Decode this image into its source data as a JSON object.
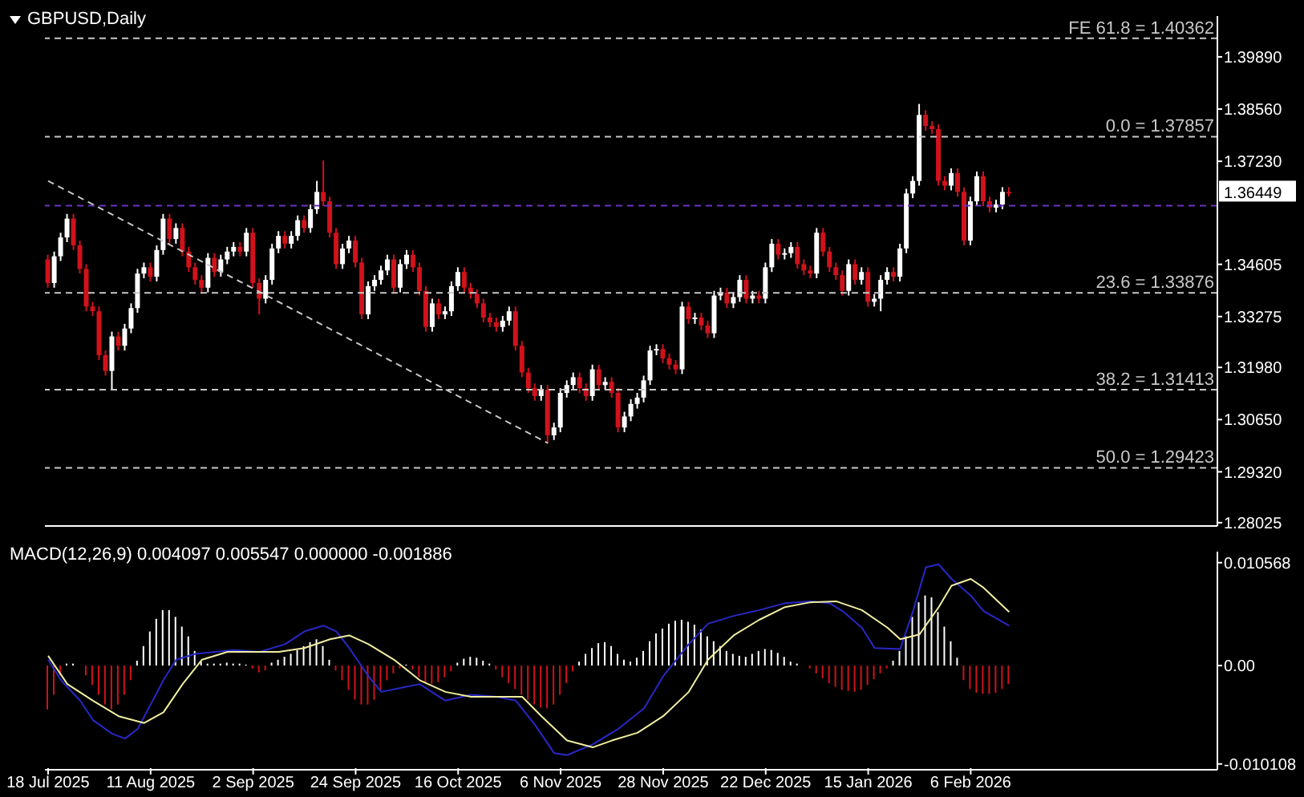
{
  "chart_data": [
    {
      "type": "candlestick",
      "title": "GBPUSD,Daily",
      "tick_labels": "y",
      "categories": [
        null,
        null,
        null,
        null,
        null,
        null,
        null,
        null,
        null,
        null,
        null,
        null,
        null,
        null,
        null,
        null,
        null,
        null,
        null,
        null,
        null,
        null,
        null,
        null,
        null,
        null,
        null,
        null,
        null,
        null,
        null,
        null,
        null,
        null,
        null,
        null,
        null,
        null,
        null,
        null,
        null,
        null,
        null,
        null,
        null,
        null,
        null,
        null,
        null,
        null,
        null,
        null,
        null,
        null,
        null,
        null,
        null,
        null,
        null,
        null,
        null,
        null,
        null,
        null,
        null,
        null,
        null,
        null,
        null,
        null,
        null,
        null,
        null,
        null,
        null,
        null,
        null,
        null,
        null,
        null,
        null,
        null,
        null,
        null,
        null,
        null,
        null,
        null,
        null,
        null,
        null,
        null,
        null,
        null,
        null,
        null,
        null,
        null,
        null,
        null,
        null,
        null,
        null,
        null,
        null,
        null,
        null,
        null,
        null,
        null,
        null,
        null,
        null,
        null,
        null,
        null,
        null,
        null,
        null,
        null,
        null,
        null,
        null,
        null,
        null,
        null,
        null,
        null,
        null,
        null,
        null,
        null,
        null,
        null,
        null,
        null,
        null,
        null,
        null,
        null,
        null,
        null,
        null,
        null,
        null,
        null,
        null,
        null,
        null,
        null,
        null,
        null,
        null,
        null,
        null,
        null,
        null,
        null,
        null,
        null,
        null,
        null,
        null,
        null,
        null,
        null,
        null,
        null,
        null,
        null,
        null,
        null,
        null,
        null,
        null,
        null,
        null,
        null,
        null,
        null,
        null,
        null,
        null
      ],
      "ohlc": [
        [
          1.3473,
          1.3485,
          1.3401,
          1.3413
        ],
        [
          1.3413,
          1.3493,
          1.3401,
          1.3481
        ],
        [
          1.3481,
          1.3541,
          1.3469,
          1.3529
        ],
        [
          1.3529,
          1.3589,
          1.3517,
          1.3577
        ],
        [
          1.3577,
          1.3589,
          1.3497,
          1.3509
        ],
        [
          1.3509,
          1.3521,
          1.3437,
          1.3449
        ],
        [
          1.3449,
          1.3461,
          1.3341,
          1.3353
        ],
        [
          1.3353,
          1.3365,
          1.3329,
          1.3341
        ],
        [
          1.3341,
          1.3353,
          1.3217,
          1.3229
        ],
        [
          1.3229,
          1.3241,
          1.3177,
          1.3189
        ],
        [
          1.3189,
          1.3289,
          1.3141,
          1.3277
        ],
        [
          1.3277,
          1.3289,
          1.3241,
          1.3253
        ],
        [
          1.3253,
          1.3309,
          1.3241,
          1.3297
        ],
        [
          1.3297,
          1.3361,
          1.3285,
          1.3349
        ],
        [
          1.3349,
          1.3449,
          1.3337,
          1.3437
        ],
        [
          1.3437,
          1.3465,
          1.3425,
          1.3453
        ],
        [
          1.3453,
          1.3465,
          1.3417,
          1.3429
        ],
        [
          1.3429,
          1.3509,
          1.3417,
          1.3497
        ],
        [
          1.3497,
          1.3589,
          1.3485,
          1.3577
        ],
        [
          1.3577,
          1.3589,
          1.3513,
          1.3525
        ],
        [
          1.3525,
          1.3565,
          1.3513,
          1.3553
        ],
        [
          1.3553,
          1.3565,
          1.3481,
          1.3493
        ],
        [
          1.3493,
          1.3505,
          1.3441,
          1.3453
        ],
        [
          1.3453,
          1.3465,
          1.3409,
          1.3421
        ],
        [
          1.3421,
          1.3433,
          1.3389,
          1.3401
        ],
        [
          1.3401,
          1.3489,
          1.3389,
          1.3477
        ],
        [
          1.3477,
          1.3489,
          1.3429,
          1.3441
        ],
        [
          1.3441,
          1.3485,
          1.3429,
          1.3473
        ],
        [
          1.3473,
          1.3505,
          1.3461,
          1.3493
        ],
        [
          1.3493,
          1.3517,
          1.3481,
          1.3505
        ],
        [
          1.3505,
          1.3517,
          1.3481,
          1.3493
        ],
        [
          1.3493,
          1.3553,
          1.3481,
          1.3541
        ],
        [
          1.3541,
          1.3553,
          1.3401,
          1.3413
        ],
        [
          1.3413,
          1.3425,
          1.3333,
          1.3373
        ],
        [
          1.3373,
          1.3433,
          1.3361,
          1.3421
        ],
        [
          1.3421,
          1.3513,
          1.3409,
          1.3501
        ],
        [
          1.3501,
          1.3545,
          1.3489,
          1.3533
        ],
        [
          1.3533,
          1.3545,
          1.3501,
          1.3513
        ],
        [
          1.3513,
          1.3545,
          1.3501,
          1.3533
        ],
        [
          1.3533,
          1.3585,
          1.3521,
          1.3573
        ],
        [
          1.3573,
          1.3585,
          1.3541,
          1.3553
        ],
        [
          1.3553,
          1.3613,
          1.3541,
          1.3601
        ],
        [
          1.3601,
          1.3673,
          1.3589,
          1.3645
        ],
        [
          1.3645,
          1.3725,
          1.3609,
          1.3621
        ],
        [
          1.3621,
          1.3633,
          1.3529,
          1.3541
        ],
        [
          1.3541,
          1.3553,
          1.3449,
          1.3461
        ],
        [
          1.3461,
          1.3513,
          1.3449,
          1.3501
        ],
        [
          1.3501,
          1.3533,
          1.3489,
          1.3521
        ],
        [
          1.3521,
          1.3533,
          1.3453,
          1.3465
        ],
        [
          1.3465,
          1.3477,
          1.3321,
          1.3333
        ],
        [
          1.3333,
          1.3417,
          1.3321,
          1.3405
        ],
        [
          1.3405,
          1.3433,
          1.3393,
          1.3421
        ],
        [
          1.3421,
          1.3457,
          1.3409,
          1.3445
        ],
        [
          1.3445,
          1.3485,
          1.3433,
          1.3473
        ],
        [
          1.3473,
          1.3485,
          1.3389,
          1.3401
        ],
        [
          1.3401,
          1.3473,
          1.3389,
          1.3461
        ],
        [
          1.3461,
          1.3497,
          1.3449,
          1.3485
        ],
        [
          1.3485,
          1.3497,
          1.3441,
          1.3453
        ],
        [
          1.3453,
          1.3465,
          1.3381,
          1.3393
        ],
        [
          1.3393,
          1.3405,
          1.3289,
          1.3301
        ],
        [
          1.3301,
          1.3373,
          1.3289,
          1.3361
        ],
        [
          1.3361,
          1.3373,
          1.3321,
          1.3333
        ],
        [
          1.3333,
          1.3353,
          1.3321,
          1.3341
        ],
        [
          1.3341,
          1.3417,
          1.3329,
          1.3405
        ],
        [
          1.3405,
          1.3453,
          1.3393,
          1.3441
        ],
        [
          1.3441,
          1.3453,
          1.3389,
          1.3401
        ],
        [
          1.3401,
          1.3413,
          1.3373,
          1.3385
        ],
        [
          1.3385,
          1.3397,
          1.3349,
          1.3361
        ],
        [
          1.3361,
          1.3373,
          1.3313,
          1.3325
        ],
        [
          1.3325,
          1.3337,
          1.3301,
          1.3313
        ],
        [
          1.3313,
          1.3325,
          1.3289,
          1.3301
        ],
        [
          1.3301,
          1.3329,
          1.3289,
          1.3317
        ],
        [
          1.3317,
          1.3353,
          1.3305,
          1.3341
        ],
        [
          1.3341,
          1.3353,
          1.3241,
          1.3253
        ],
        [
          1.3253,
          1.3265,
          1.3173,
          1.3185
        ],
        [
          1.3185,
          1.3197,
          1.3133,
          1.3145
        ],
        [
          1.3145,
          1.3157,
          1.3113,
          1.3125
        ],
        [
          1.3125,
          1.3153,
          1.3113,
          1.3141
        ],
        [
          1.3141,
          1.3153,
          1.3005,
          1.3025
        ],
        [
          1.3025,
          1.3057,
          1.3013,
          1.3045
        ],
        [
          1.3045,
          1.3145,
          1.3033,
          1.3133
        ],
        [
          1.3133,
          1.3165,
          1.3121,
          1.3153
        ],
        [
          1.3153,
          1.3185,
          1.3141,
          1.3173
        ],
        [
          1.3173,
          1.3185,
          1.3133,
          1.3145
        ],
        [
          1.3145,
          1.3157,
          1.3113,
          1.3125
        ],
        [
          1.3125,
          1.3205,
          1.3113,
          1.3193
        ],
        [
          1.3193,
          1.3205,
          1.3141,
          1.3153
        ],
        [
          1.3153,
          1.3173,
          1.3141,
          1.3161
        ],
        [
          1.3161,
          1.3173,
          1.3121,
          1.3133
        ],
        [
          1.3133,
          1.3145,
          1.3033,
          1.3045
        ],
        [
          1.3045,
          1.3085,
          1.3033,
          1.3073
        ],
        [
          1.3073,
          1.3117,
          1.3061,
          1.3105
        ],
        [
          1.3105,
          1.3133,
          1.3093,
          1.3121
        ],
        [
          1.3121,
          1.3177,
          1.3109,
          1.3165
        ],
        [
          1.3165,
          1.3253,
          1.3153,
          1.3241
        ],
        [
          1.3241,
          1.3257,
          1.3229,
          1.3245
        ],
        [
          1.3245,
          1.3257,
          1.3209,
          1.3221
        ],
        [
          1.3221,
          1.3233,
          1.3193,
          1.3205
        ],
        [
          1.3205,
          1.3217,
          1.3181,
          1.3193
        ],
        [
          1.3193,
          1.3365,
          1.3181,
          1.3353
        ],
        [
          1.3353,
          1.3365,
          1.3309,
          1.3321
        ],
        [
          1.3321,
          1.3337,
          1.3309,
          1.3325
        ],
        [
          1.3325,
          1.3337,
          1.3293,
          1.3305
        ],
        [
          1.3305,
          1.3317,
          1.3273,
          1.3285
        ],
        [
          1.3285,
          1.3393,
          1.3273,
          1.3381
        ],
        [
          1.3381,
          1.3401,
          1.3369,
          1.3389
        ],
        [
          1.3389,
          1.3401,
          1.3349,
          1.3361
        ],
        [
          1.3361,
          1.3389,
          1.3349,
          1.3377
        ],
        [
          1.3377,
          1.3433,
          1.3365,
          1.3421
        ],
        [
          1.3421,
          1.3433,
          1.3361,
          1.3373
        ],
        [
          1.3373,
          1.3393,
          1.3361,
          1.3381
        ],
        [
          1.3381,
          1.3393,
          1.3361,
          1.3373
        ],
        [
          1.3373,
          1.3465,
          1.3361,
          1.3453
        ],
        [
          1.3453,
          1.3525,
          1.3441,
          1.3513
        ],
        [
          1.3513,
          1.3525,
          1.3473,
          1.3485
        ],
        [
          1.3485,
          1.3501,
          1.3473,
          1.3489
        ],
        [
          1.3489,
          1.3517,
          1.3477,
          1.3505
        ],
        [
          1.3505,
          1.3517,
          1.3449,
          1.3461
        ],
        [
          1.3461,
          1.3473,
          1.3433,
          1.3445
        ],
        [
          1.3445,
          1.3457,
          1.3425,
          1.3437
        ],
        [
          1.3437,
          1.3553,
          1.3425,
          1.3541
        ],
        [
          1.3541,
          1.3553,
          1.3481,
          1.3493
        ],
        [
          1.3493,
          1.3505,
          1.3441,
          1.3453
        ],
        [
          1.3453,
          1.3465,
          1.3421,
          1.3433
        ],
        [
          1.3433,
          1.3445,
          1.3381,
          1.3393
        ],
        [
          1.3393,
          1.3473,
          1.3381,
          1.3461
        ],
        [
          1.3461,
          1.3473,
          1.3409,
          1.3421
        ],
        [
          1.3421,
          1.3453,
          1.3409,
          1.3441
        ],
        [
          1.3441,
          1.3453,
          1.3353,
          1.3365
        ],
        [
          1.3365,
          1.3385,
          1.3353,
          1.3373
        ],
        [
          1.3373,
          1.3433,
          1.3341,
          1.3421
        ],
        [
          1.3421,
          1.3453,
          1.3409,
          1.3441
        ],
        [
          1.3441,
          1.3453,
          1.3417,
          1.3429
        ],
        [
          1.3429,
          1.3513,
          1.3417,
          1.3501
        ],
        [
          1.3501,
          1.3653,
          1.3489,
          1.3641
        ],
        [
          1.3641,
          1.3685,
          1.3629,
          1.3673
        ],
        [
          1.3673,
          1.3869,
          1.3661,
          1.3841
        ],
        [
          1.3841,
          1.3853,
          1.3801,
          1.3813
        ],
        [
          1.3813,
          1.3825,
          1.3793,
          1.3805
        ],
        [
          1.3805,
          1.3817,
          1.3661,
          1.3673
        ],
        [
          1.3673,
          1.3685,
          1.3649,
          1.3661
        ],
        [
          1.3661,
          1.3705,
          1.3649,
          1.3693
        ],
        [
          1.3693,
          1.3705,
          1.3633,
          1.3645
        ],
        [
          1.3645,
          1.3657,
          1.3509,
          1.3521
        ],
        [
          1.3521,
          1.3633,
          1.3509,
          1.3621
        ],
        [
          1.3621,
          1.3697,
          1.3609,
          1.3685
        ],
        [
          1.3685,
          1.3697,
          1.3609,
          1.3621
        ],
        [
          1.3621,
          1.3633,
          1.3593,
          1.3605
        ],
        [
          1.3605,
          1.3625,
          1.3593,
          1.3613
        ],
        [
          1.3613,
          1.3657,
          1.3601,
          1.3645
        ],
        [
          1.3645,
          1.3657,
          1.3633,
          1.36449
        ],
        null,
        null,
        null,
        null,
        null,
        null,
        null,
        null,
        null,
        null,
        null,
        null,
        null,
        null,
        null,
        null,
        null,
        null,
        null,
        null,
        null,
        null,
        null,
        null,
        null,
        null,
        null,
        null,
        null,
        null,
        null,
        null
      ],
      "series": [
        {
          "type": "line",
          "color": "#c8c8c8",
          "line_style": "dashed",
          "values": [
            1.3673,
            null,
            null,
            null,
            null,
            null,
            null,
            null,
            null,
            null,
            null,
            null,
            null,
            null,
            null,
            null,
            null,
            null,
            null,
            null,
            null,
            null,
            null,
            null,
            null,
            null,
            null,
            null,
            null,
            null,
            null,
            null,
            null,
            null,
            null,
            null,
            null,
            null,
            null,
            null,
            null,
            null,
            null,
            null,
            null,
            null,
            null,
            null,
            null,
            null,
            null,
            null,
            null,
            null,
            null,
            null,
            null,
            null,
            null,
            null,
            null,
            null,
            null,
            null,
            null,
            null,
            null,
            null,
            null,
            null,
            null,
            null,
            null,
            null,
            null,
            null,
            null,
            null,
            1.3005,
            null,
            null,
            null,
            null,
            null,
            null,
            null,
            null,
            null,
            null,
            null,
            null,
            null,
            null,
            null,
            null,
            null,
            null,
            null,
            null,
            null,
            null,
            null,
            null,
            null,
            null,
            null,
            null,
            null,
            null,
            null,
            null,
            null,
            null,
            null,
            null,
            null,
            null,
            null,
            null,
            null,
            null,
            null,
            null,
            null,
            null,
            null,
            null,
            null,
            null,
            null,
            null,
            null,
            null,
            null,
            null,
            null,
            null,
            null,
            null,
            null,
            null,
            null,
            null,
            null,
            null,
            null,
            null,
            null,
            null,
            null,
            null,
            null,
            null,
            null,
            null,
            null,
            null,
            null,
            null,
            null,
            null,
            null,
            null,
            null,
            null,
            null,
            null,
            null,
            null,
            null,
            null,
            null,
            null,
            null,
            null,
            null,
            null,
            null,
            null,
            null,
            null,
            null,
            null
          ]
        }
      ],
      "ylim": [
        1.2794,
        1.4093
      ],
      "yticks": [
        {
          "value": 1.3989,
          "label": "1.39890"
        },
        {
          "value": 1.3856,
          "label": "1.38560"
        },
        {
          "value": 1.3723,
          "label": "1.37230"
        },
        1.34605,
        1.33275,
        {
          "value": 1.3198,
          "label": "1.31980"
        },
        {
          "value": 1.3065,
          "label": "1.30650"
        },
        {
          "value": 1.2932,
          "label": "1.29320"
        },
        1.28025
      ],
      "ref_lines": [
        {
          "axis": "y",
          "value": 1.40362,
          "label": "FE 61.8 = 1.40362",
          "color": "#c8c8c8",
          "line_style": "dashed"
        },
        {
          "axis": "y",
          "value": 1.37857,
          "label": "0.0 = 1.37857",
          "color": "#c8c8c8",
          "line_style": "dashed"
        },
        {
          "axis": "y",
          "value": 1.33876,
          "label": "23.6 = 1.33876",
          "color": "#c8c8c8",
          "line_style": "dashed"
        },
        {
          "axis": "y",
          "value": 1.31413,
          "label": "38.2 = 1.31413",
          "color": "#c8c8c8",
          "line_style": "dashed"
        },
        {
          "axis": "y",
          "value": 1.29423,
          "label": "50.0 = 1.29423",
          "color": "#c8c8c8",
          "line_style": "dashed"
        },
        {
          "axis": "y",
          "value": 1.361,
          "color": "#6a35c0",
          "line_style": "dashed"
        }
      ],
      "annotations": [
        "1.36449"
      ]
    },
    {
      "type": "bar",
      "title": "MACD(12,26,9) 0.004097 0.005547 0.000000 -0.001886",
      "stacked": true,
      "categories": [
        "18 Jul 2025",
        null,
        null,
        null,
        null,
        null,
        null,
        null,
        null,
        null,
        null,
        null,
        null,
        null,
        null,
        null,
        "11 Aug 2025",
        null,
        null,
        null,
        null,
        null,
        null,
        null,
        null,
        null,
        null,
        null,
        null,
        null,
        null,
        null,
        "2 Sep 2025",
        null,
        null,
        null,
        null,
        null,
        null,
        null,
        null,
        null,
        null,
        null,
        null,
        null,
        null,
        null,
        "24 Sep 2025",
        null,
        null,
        null,
        null,
        null,
        null,
        null,
        null,
        null,
        null,
        null,
        null,
        null,
        null,
        null,
        "16 Oct 2025",
        null,
        null,
        null,
        null,
        null,
        null,
        null,
        null,
        null,
        null,
        null,
        null,
        null,
        null,
        null,
        "6 Nov 2025",
        null,
        null,
        null,
        null,
        null,
        null,
        null,
        null,
        null,
        null,
        null,
        null,
        null,
        null,
        null,
        "28 Nov 2025",
        null,
        null,
        null,
        null,
        null,
        null,
        null,
        null,
        null,
        null,
        null,
        null,
        null,
        null,
        null,
        "22 Dec 2025",
        null,
        null,
        null,
        null,
        null,
        null,
        null,
        null,
        null,
        null,
        null,
        null,
        null,
        null,
        null,
        "15 Jan 2026",
        null,
        null,
        null,
        null,
        null,
        null,
        null,
        null,
        null,
        null,
        null,
        null,
        null,
        null,
        null,
        "6 Feb 2026",
        null,
        null,
        null,
        null,
        null,
        null,
        null,
        null,
        null,
        null,
        null,
        null,
        null,
        null,
        null,
        null,
        null,
        null,
        null,
        null,
        null,
        null,
        null,
        null,
        null,
        null,
        null,
        null,
        null,
        null,
        null,
        null,
        null,
        null,
        null,
        null,
        null,
        null
      ],
      "series": [
        {
          "type": "bar",
          "color": "#ffffff",
          "values": [
            null,
            null,
            null,
            0.0002,
            0.0002,
            null,
            null,
            null,
            null,
            null,
            null,
            null,
            null,
            null,
            0.0005,
            0.002,
            0.0035,
            0.0048,
            0.0057,
            0.0057,
            0.005,
            0.004,
            0.003,
            0.0015,
            0.0004,
            0.0002,
            0.0002,
            0.0002,
            0.0003,
            0.0002,
            0.0002,
            0.0001,
            null,
            null,
            null,
            0.0003,
            0.0006,
            0.0009,
            0.0012,
            0.0016,
            0.002,
            0.0024,
            0.0027,
            0.002,
            0.0006,
            null,
            null,
            null,
            null,
            null,
            null,
            null,
            null,
            null,
            null,
            null,
            0.0001,
            null,
            null,
            null,
            null,
            null,
            null,
            null,
            0.0003,
            0.0007,
            0.0009,
            0.0008,
            0.0005,
            0.0002,
            null,
            null,
            null,
            null,
            null,
            null,
            null,
            null,
            null,
            null,
            null,
            null,
            null,
            0.0004,
            0.0012,
            0.0018,
            0.0023,
            0.0024,
            0.002,
            0.0012,
            0.0006,
            0.0004,
            0.0008,
            0.0015,
            0.0025,
            0.0033,
            0.0038,
            0.0043,
            0.0046,
            0.0047,
            0.0045,
            0.0042,
            0.0037,
            0.003,
            0.0025,
            0.002,
            0.0015,
            0.0012,
            0.001,
            0.0009,
            0.0012,
            0.0015,
            0.0017,
            0.0016,
            0.0013,
            0.0009,
            0.0004,
            0.0002,
            null,
            null,
            null,
            null,
            null,
            null,
            null,
            null,
            null,
            null,
            null,
            null,
            null,
            null,
            0.0005,
            0.0015,
            0.003,
            0.005,
            0.0065,
            0.0072,
            0.007,
            0.0055,
            0.004,
            0.0025,
            0.0008,
            null,
            null,
            null,
            null,
            null,
            null,
            null,
            null,
            null,
            null,
            null,
            null,
            null,
            null,
            null,
            null,
            null,
            null,
            null,
            null,
            null,
            null,
            null,
            null,
            null,
            null,
            null,
            null,
            null,
            null,
            null,
            null,
            null,
            null,
            null,
            null,
            null,
            null,
            null,
            null
          ]
        },
        {
          "type": "bar",
          "color": "#d0121b",
          "values": [
            -0.0045,
            -0.003,
            -0.001,
            null,
            null,
            null,
            -0.001,
            -0.002,
            -0.003,
            -0.004,
            -0.0045,
            -0.004,
            -0.003,
            -0.0015,
            null,
            null,
            null,
            null,
            null,
            null,
            null,
            null,
            null,
            null,
            null,
            null,
            null,
            null,
            null,
            null,
            null,
            null,
            -0.0003,
            -0.0007,
            -0.0005,
            null,
            null,
            null,
            null,
            null,
            null,
            null,
            null,
            null,
            null,
            -0.0005,
            -0.0015,
            -0.0025,
            -0.0035,
            -0.004,
            -0.004,
            -0.0035,
            -0.0025,
            -0.0015,
            -0.0008,
            -0.0003,
            null,
            -0.0004,
            -0.0012,
            -0.0018,
            -0.0019,
            -0.0017,
            -0.0012,
            -0.0006,
            null,
            null,
            null,
            null,
            null,
            null,
            -0.0004,
            -0.0012,
            -0.0018,
            -0.0024,
            -0.003,
            -0.0035,
            -0.004,
            -0.0043,
            -0.0044,
            -0.004,
            -0.003,
            -0.0018,
            -0.0006,
            null,
            null,
            null,
            null,
            null,
            null,
            null,
            null,
            null,
            null,
            null,
            null,
            null,
            null,
            null,
            null,
            null,
            null,
            null,
            null,
            null,
            null,
            null,
            null,
            null,
            null,
            null,
            null,
            null,
            null,
            null,
            null,
            null,
            null,
            null,
            null,
            -0.0003,
            -0.0008,
            -0.0013,
            -0.0018,
            -0.0022,
            -0.0025,
            -0.0026,
            -0.0027,
            -0.0025,
            -0.002,
            -0.0014,
            -0.0008,
            -0.0003,
            null,
            null,
            null,
            null,
            null,
            null,
            null,
            null,
            null,
            null,
            null,
            -0.0015,
            -0.0024,
            -0.0028,
            -0.0029,
            -0.0029,
            -0.0028,
            -0.0024,
            -0.0019,
            null,
            null,
            null,
            null,
            null,
            null,
            null,
            null,
            null,
            null,
            null,
            null,
            null,
            null,
            null,
            null,
            null,
            null,
            null,
            null,
            null,
            null,
            null,
            null,
            null,
            null,
            null,
            null,
            null,
            null,
            null,
            null
          ]
        },
        {
          "type": "line",
          "color": "#2828c8",
          "values": [
            0.0006,
            null,
            -0.0015,
            null,
            null,
            -0.0036,
            null,
            -0.0056,
            null,
            null,
            -0.007,
            null,
            -0.0075,
            null,
            -0.0065,
            null,
            -0.004,
            null,
            -0.0015,
            null,
            0.0006,
            null,
            null,
            0.0012,
            null,
            null,
            0.0014,
            null,
            null,
            0.0016,
            null,
            null,
            null,
            0.0014,
            null,
            null,
            null,
            0.0022,
            null,
            null,
            0.0035,
            null,
            null,
            0.0041,
            null,
            0.0035,
            null,
            0.0018,
            null,
            null,
            -0.0011,
            null,
            -0.0027,
            null,
            null,
            -0.0023,
            null,
            null,
            -0.0019,
            null,
            null,
            null,
            -0.0036,
            null,
            null,
            null,
            -0.003,
            null,
            null,
            null,
            -0.0032,
            null,
            null,
            -0.0036,
            null,
            null,
            -0.0061,
            null,
            null,
            -0.009,
            null,
            -0.0092,
            null,
            null,
            null,
            -0.0081,
            null,
            null,
            null,
            -0.0065,
            null,
            null,
            null,
            -0.0044,
            null,
            null,
            -0.0011,
            null,
            null,
            null,
            0.0022,
            null,
            null,
            0.0043,
            null,
            null,
            null,
            0.0051,
            null,
            null,
            null,
            0.0057,
            null,
            null,
            null,
            0.0064,
            null,
            null,
            null,
            0.0066,
            null,
            null,
            0.0064,
            null,
            0.0056,
            null,
            null,
            0.0039,
            null,
            0.0018,
            null,
            null,
            null,
            0.0017,
            null,
            0.0056,
            null,
            0.0101,
            null,
            0.0104,
            null,
            0.0089,
            null,
            null,
            0.0072,
            null,
            0.0056,
            null,
            null,
            null,
            0.0041,
            null,
            null,
            null,
            null,
            null,
            null,
            null,
            null,
            null,
            null,
            null,
            null,
            null,
            null,
            null,
            null,
            null,
            null,
            null,
            null,
            null,
            null,
            null,
            null,
            null,
            null,
            null,
            null,
            null,
            null,
            null,
            null
          ]
        },
        {
          "type": "line",
          "color": "#f0eea0",
          "values": [
            0.001,
            null,
            null,
            -0.0019,
            null,
            null,
            null,
            -0.0036,
            null,
            null,
            null,
            -0.0052,
            null,
            null,
            null,
            -0.0059,
            null,
            null,
            -0.0048,
            null,
            null,
            -0.0019,
            null,
            null,
            0.0006,
            null,
            null,
            null,
            0.0014,
            null,
            null,
            null,
            0.0014,
            null,
            null,
            null,
            0.0014,
            null,
            null,
            null,
            0.0018,
            null,
            null,
            null,
            0.0027,
            null,
            null,
            0.0031,
            null,
            null,
            0.0022,
            null,
            null,
            null,
            0.0006,
            null,
            null,
            null,
            -0.0015,
            null,
            null,
            null,
            -0.0027,
            null,
            null,
            null,
            -0.0032,
            null,
            null,
            null,
            null,
            -0.0032,
            null,
            null,
            -0.0032,
            null,
            null,
            -0.0052,
            null,
            null,
            null,
            -0.0077,
            null,
            null,
            null,
            -0.0084,
            null,
            null,
            -0.0077,
            null,
            null,
            null,
            -0.0069,
            null,
            null,
            null,
            -0.0052,
            null,
            null,
            null,
            -0.0027,
            null,
            null,
            0.0006,
            null,
            null,
            null,
            0.0031,
            null,
            null,
            null,
            0.0047,
            null,
            null,
            null,
            0.006,
            null,
            null,
            null,
            0.0065,
            null,
            null,
            null,
            0.0066,
            null,
            null,
            null,
            0.0057,
            null,
            null,
            null,
            0.0039,
            null,
            0.0027,
            null,
            null,
            0.0032,
            null,
            null,
            0.006,
            null,
            0.0082,
            null,
            null,
            0.0089,
            null,
            0.008,
            null,
            null,
            null,
            0.0055,
            null,
            null,
            null,
            null,
            null,
            null,
            null,
            null,
            null,
            null,
            null,
            null,
            null,
            null,
            null,
            null,
            null,
            null,
            null,
            null,
            null,
            null,
            null,
            null,
            null,
            null,
            null,
            null,
            null,
            null,
            null,
            null
          ]
        }
      ],
      "ylim": [
        -0.0107,
        0.0117
      ],
      "yticks": [
        {
          "value": 0.010568,
          "label": "0.010568"
        },
        {
          "value": 0,
          "label": "0.00"
        },
        {
          "value": -0.010108,
          "label": "-0.010108"
        }
      ]
    }
  ]
}
